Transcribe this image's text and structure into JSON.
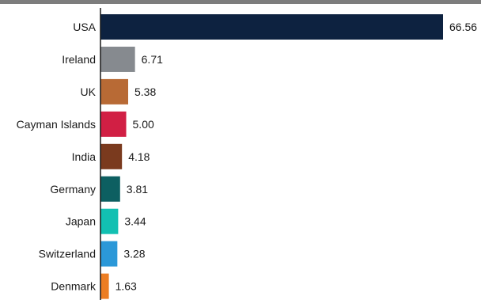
{
  "chart_data": {
    "type": "bar",
    "orientation": "horizontal",
    "categories": [
      "USA",
      "Ireland",
      "UK",
      "Cayman Islands",
      "India",
      "Germany",
      "Japan",
      "Switzerland",
      "Denmark"
    ],
    "values": [
      66.56,
      6.71,
      5.38,
      5.0,
      4.18,
      3.81,
      3.44,
      3.28,
      1.63
    ],
    "value_labels": [
      "66.56",
      "6.71",
      "5.38",
      "5.00",
      "4.18",
      "3.81",
      "3.44",
      "3.28",
      "1.63"
    ],
    "colors": [
      "#0d2240",
      "#868a8f",
      "#b86a35",
      "#d11f44",
      "#7a3a1e",
      "#0d5f61",
      "#12c0b2",
      "#2b98d8",
      "#ec7d22"
    ],
    "xlim": [
      0,
      66.56
    ],
    "grid": false,
    "legend": "none"
  }
}
